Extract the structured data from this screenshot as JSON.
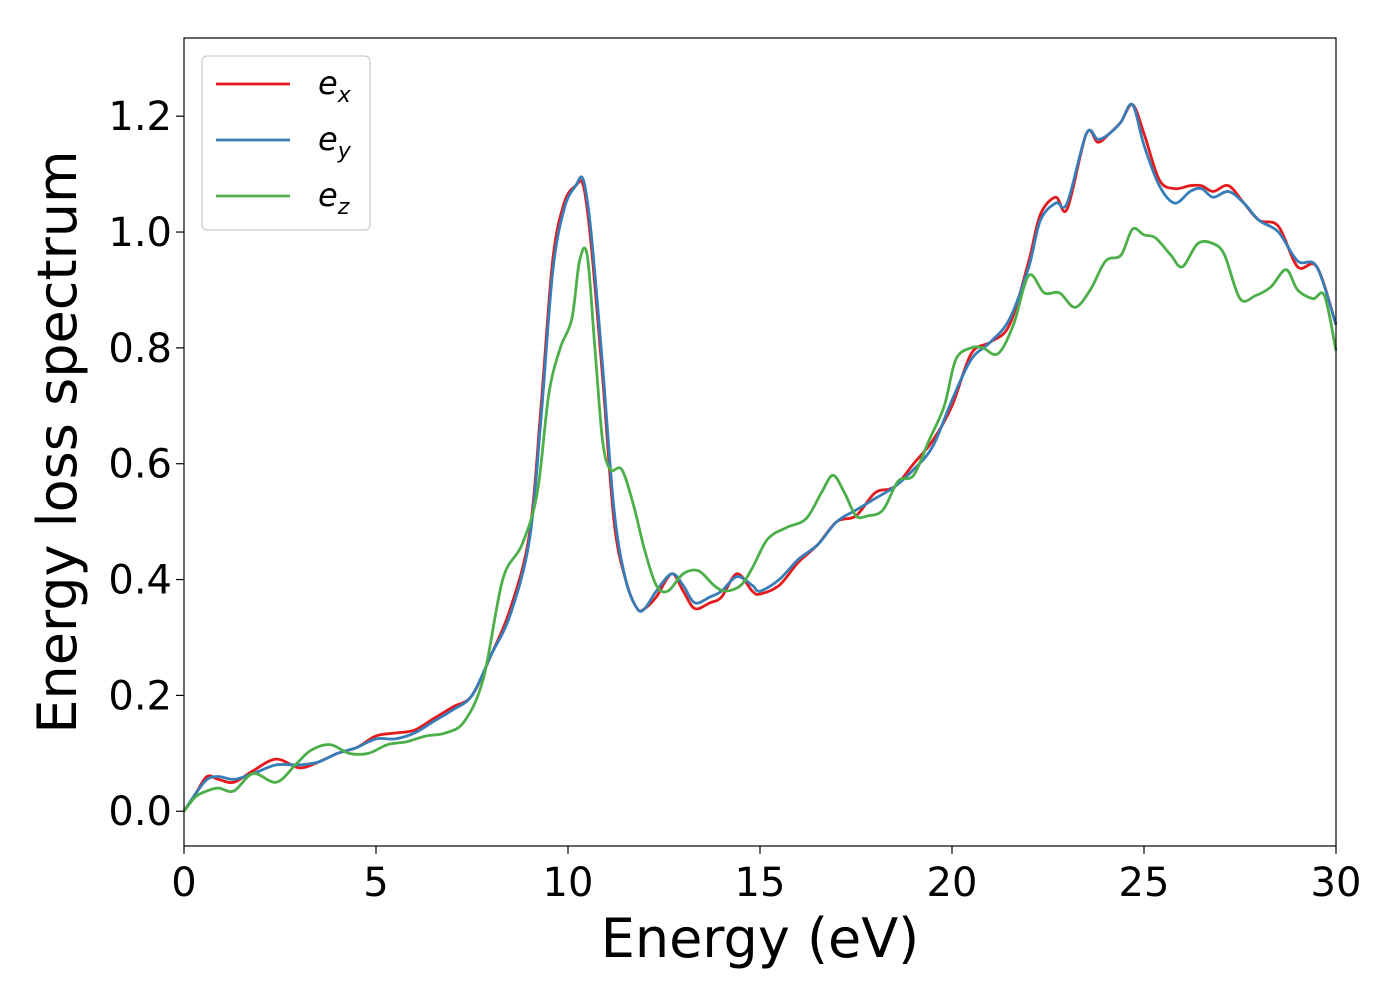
{
  "chart_data": {
    "type": "line",
    "title": "",
    "xlabel": "Energy (eV)",
    "ylabel": "Energy loss spectrum",
    "xlim": [
      0,
      30
    ],
    "ylim": [
      -0.06,
      1.335
    ],
    "xticks": [
      0,
      5,
      10,
      15,
      20,
      25,
      30
    ],
    "xtick_labels": [
      "0",
      "5",
      "10",
      "15",
      "20",
      "25",
      "30"
    ],
    "yticks": [
      0.0,
      0.2,
      0.4,
      0.6,
      0.8,
      1.0,
      1.2
    ],
    "ytick_labels": [
      "0.0",
      "0.2",
      "0.4",
      "0.6",
      "0.8",
      "1.0",
      "1.2"
    ],
    "grid": false,
    "legend_position": "top-left",
    "series": [
      {
        "name": "e_x",
        "label_main": "e",
        "label_sub": "x",
        "color": "#e41a1c",
        "x": [
          0,
          0.3,
          0.6,
          0.9,
          1.3,
          1.8,
          2.4,
          3.0,
          3.5,
          4.0,
          4.5,
          5.0,
          5.5,
          6.0,
          6.5,
          7.0,
          7.5,
          8.0,
          8.5,
          9.0,
          9.3,
          9.6,
          9.9,
          10.2,
          10.4,
          10.6,
          10.9,
          11.2,
          11.5,
          11.8,
          12.0,
          12.3,
          12.7,
          13.0,
          13.3,
          13.7,
          14.0,
          14.4,
          14.8,
          15.0,
          15.5,
          16.0,
          16.5,
          17.0,
          17.5,
          18.0,
          18.5,
          19.0,
          19.5,
          20.0,
          20.5,
          21.0,
          21.5,
          22.0,
          22.3,
          22.7,
          23.0,
          23.5,
          23.8,
          24.1,
          24.4,
          24.7,
          25.0,
          25.4,
          25.8,
          26.2,
          26.5,
          26.8,
          27.2,
          27.6,
          28.0,
          28.5,
          29.0,
          29.5,
          30.0
        ],
        "y": [
          0.0,
          0.03,
          0.06,
          0.055,
          0.05,
          0.07,
          0.09,
          0.075,
          0.085,
          0.1,
          0.11,
          0.13,
          0.135,
          0.14,
          0.16,
          0.18,
          0.2,
          0.27,
          0.35,
          0.48,
          0.7,
          0.95,
          1.05,
          1.08,
          1.08,
          0.98,
          0.75,
          0.5,
          0.4,
          0.35,
          0.35,
          0.37,
          0.41,
          0.38,
          0.35,
          0.36,
          0.37,
          0.41,
          0.38,
          0.375,
          0.39,
          0.43,
          0.46,
          0.5,
          0.51,
          0.55,
          0.56,
          0.6,
          0.64,
          0.7,
          0.79,
          0.81,
          0.84,
          0.95,
          1.03,
          1.06,
          1.04,
          1.17,
          1.155,
          1.17,
          1.19,
          1.22,
          1.17,
          1.09,
          1.075,
          1.08,
          1.08,
          1.07,
          1.08,
          1.05,
          1.02,
          1.01,
          0.94,
          0.94,
          0.84
        ]
      },
      {
        "name": "e_y",
        "label_main": "e",
        "label_sub": "y",
        "color": "#377eb8",
        "x": [
          0,
          0.3,
          0.6,
          0.9,
          1.3,
          1.8,
          2.4,
          3.0,
          3.5,
          4.0,
          4.5,
          5.0,
          5.5,
          6.0,
          6.5,
          7.0,
          7.5,
          8.0,
          8.5,
          9.0,
          9.3,
          9.6,
          9.9,
          10.2,
          10.4,
          10.6,
          10.9,
          11.2,
          11.5,
          11.8,
          12.0,
          12.3,
          12.7,
          13.0,
          13.3,
          13.7,
          14.0,
          14.4,
          14.8,
          15.0,
          15.5,
          16.0,
          16.5,
          17.0,
          17.5,
          18.0,
          18.5,
          19.0,
          19.5,
          20.0,
          20.5,
          21.0,
          21.5,
          22.0,
          22.3,
          22.7,
          23.0,
          23.5,
          23.8,
          24.1,
          24.4,
          24.7,
          25.0,
          25.4,
          25.8,
          26.2,
          26.5,
          26.8,
          27.2,
          27.6,
          28.0,
          28.5,
          29.0,
          29.5,
          30.0
        ],
        "y": [
          0.0,
          0.03,
          0.055,
          0.06,
          0.055,
          0.065,
          0.08,
          0.08,
          0.085,
          0.1,
          0.11,
          0.125,
          0.125,
          0.135,
          0.155,
          0.175,
          0.2,
          0.27,
          0.34,
          0.47,
          0.68,
          0.93,
          1.04,
          1.08,
          1.09,
          1.0,
          0.77,
          0.52,
          0.4,
          0.35,
          0.35,
          0.38,
          0.41,
          0.39,
          0.36,
          0.37,
          0.38,
          0.405,
          0.39,
          0.38,
          0.4,
          0.435,
          0.46,
          0.5,
          0.52,
          0.54,
          0.56,
          0.59,
          0.63,
          0.71,
          0.78,
          0.81,
          0.85,
          0.94,
          1.02,
          1.05,
          1.05,
          1.17,
          1.16,
          1.17,
          1.19,
          1.22,
          1.15,
          1.08,
          1.05,
          1.07,
          1.075,
          1.06,
          1.07,
          1.05,
          1.02,
          1.0,
          0.95,
          0.94,
          0.84
        ]
      },
      {
        "name": "e_z",
        "label_main": "e",
        "label_sub": "z",
        "color": "#4daf4a",
        "x": [
          0,
          0.3,
          0.6,
          0.9,
          1.3,
          1.8,
          2.4,
          2.9,
          3.3,
          3.8,
          4.3,
          4.8,
          5.3,
          5.8,
          6.3,
          6.8,
          7.3,
          7.8,
          8.3,
          8.8,
          9.2,
          9.5,
          9.8,
          10.1,
          10.3,
          10.5,
          10.7,
          10.9,
          11.1,
          11.4,
          11.7,
          12.0,
          12.3,
          12.6,
          13.0,
          13.4,
          13.8,
          14.1,
          14.5,
          14.8,
          15.2,
          15.7,
          16.2,
          16.6,
          16.9,
          17.2,
          17.5,
          17.8,
          18.2,
          18.6,
          19.0,
          19.4,
          19.8,
          20.1,
          20.5,
          20.8,
          21.2,
          21.6,
          22.0,
          22.4,
          22.8,
          23.2,
          23.6,
          24.0,
          24.4,
          24.7,
          25.0,
          25.3,
          25.7,
          26.0,
          26.4,
          26.8,
          27.1,
          27.5,
          27.9,
          28.3,
          28.7,
          29.0,
          29.4,
          29.7,
          30.0
        ],
        "y": [
          0.0,
          0.025,
          0.035,
          0.04,
          0.035,
          0.065,
          0.05,
          0.08,
          0.105,
          0.115,
          0.1,
          0.1,
          0.115,
          0.12,
          0.13,
          0.135,
          0.155,
          0.23,
          0.4,
          0.46,
          0.55,
          0.72,
          0.8,
          0.85,
          0.95,
          0.96,
          0.8,
          0.64,
          0.59,
          0.59,
          0.53,
          0.45,
          0.39,
          0.38,
          0.41,
          0.415,
          0.39,
          0.38,
          0.39,
          0.42,
          0.47,
          0.49,
          0.505,
          0.55,
          0.58,
          0.55,
          0.51,
          0.51,
          0.52,
          0.57,
          0.58,
          0.64,
          0.7,
          0.78,
          0.8,
          0.8,
          0.79,
          0.84,
          0.925,
          0.895,
          0.895,
          0.87,
          0.9,
          0.95,
          0.96,
          1.005,
          0.995,
          0.99,
          0.96,
          0.94,
          0.98,
          0.98,
          0.96,
          0.885,
          0.89,
          0.905,
          0.935,
          0.9,
          0.885,
          0.89,
          0.795
        ]
      }
    ]
  }
}
